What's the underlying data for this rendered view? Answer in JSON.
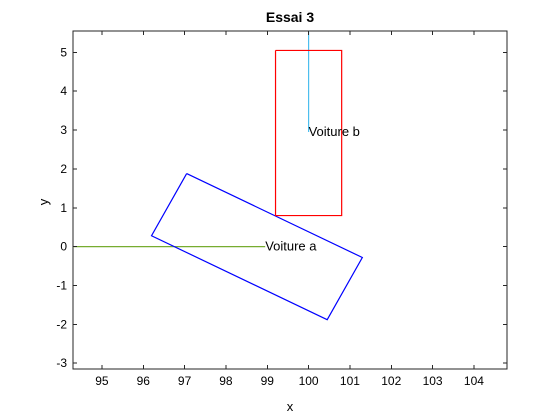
{
  "chart_data": {
    "type": "line",
    "title": "Essai 3",
    "xlabel": "x",
    "ylabel": "y",
    "xlim": [
      94.3,
      104.8
    ],
    "ylim": [
      -3.15,
      5.55
    ],
    "xticks": [
      95,
      96,
      97,
      98,
      99,
      100,
      101,
      102,
      103,
      104
    ],
    "yticks": [
      -3,
      -2,
      -1,
      0,
      1,
      2,
      3,
      4,
      5
    ],
    "grid": false,
    "series": [
      {
        "color": "#77AC30",
        "x": [
          94.3,
          98.95
        ],
        "y": [
          0.0,
          0.0
        ]
      },
      {
        "color": "#4DBEEE",
        "x": [
          100.0,
          100.0
        ],
        "y": [
          5.55,
          2.95
        ]
      },
      {
        "color": "#0000FF",
        "x": [
          97.05,
          101.3,
          100.45,
          96.2,
          97.05
        ],
        "y": [
          1.88,
          -0.28,
          -1.88,
          0.28,
          1.88
        ]
      },
      {
        "color": "#FF0000",
        "x": [
          99.2,
          100.8,
          100.8,
          99.2,
          99.2
        ],
        "y": [
          5.05,
          5.05,
          0.8,
          0.8,
          5.05
        ]
      }
    ],
    "annotations": [
      {
        "text": "Voiture a",
        "x": 98.95,
        "y": 0.0
      },
      {
        "text": "Voiture b",
        "x": 100.0,
        "y": 2.95
      }
    ]
  }
}
